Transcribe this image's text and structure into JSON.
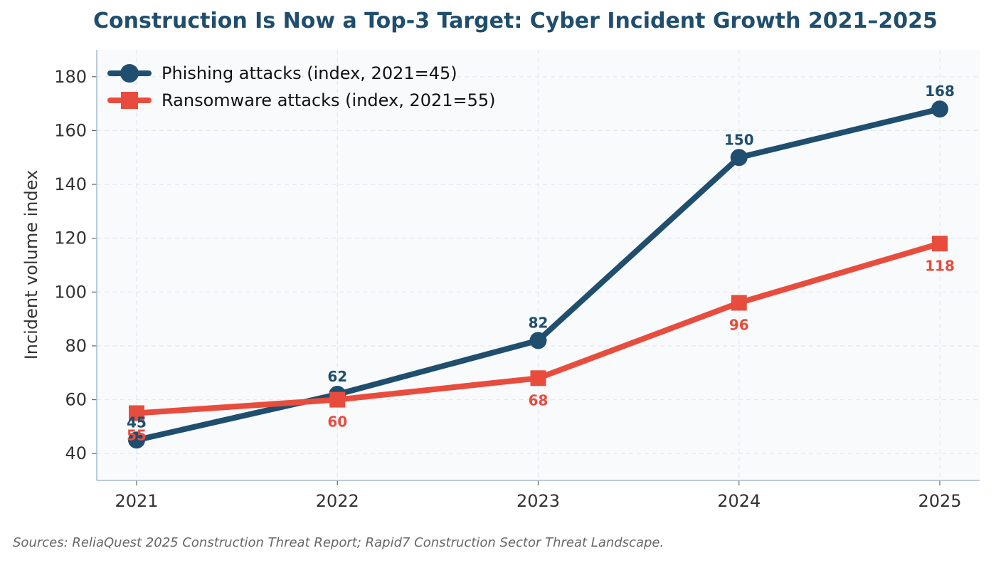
{
  "chart_data": {
    "type": "line",
    "title": "Construction Is Now a Top-3 Target: Cyber Incident Growth 2021–2025",
    "xlabel": "",
    "ylabel": "Incident volume index",
    "categories": [
      "2021",
      "2022",
      "2023",
      "2024",
      "2025"
    ],
    "ylim": [
      30,
      190
    ],
    "yticks": [
      40,
      60,
      80,
      100,
      120,
      140,
      160,
      180
    ],
    "grid": true,
    "legend_position": "top-left",
    "series": [
      {
        "name": "Phishing attacks (index, 2021=45)",
        "values": [
          45,
          62,
          82,
          150,
          168
        ],
        "color": "#1f4e6e",
        "marker": "circle",
        "label_position": "above"
      },
      {
        "name": "Ransomware attacks (index, 2021=55)",
        "values": [
          55,
          60,
          68,
          96,
          118
        ],
        "color": "#e84c3d",
        "marker": "square",
        "label_position": "below"
      }
    ]
  },
  "source_note": "Sources: ReliaQuest 2025 Construction Threat Report; Rapid7 Construction Sector Threat Landscape.",
  "colors": {
    "plot_background": "#f8fafc",
    "axis": "#a9bcd0",
    "grid": "#e2e8ee"
  }
}
